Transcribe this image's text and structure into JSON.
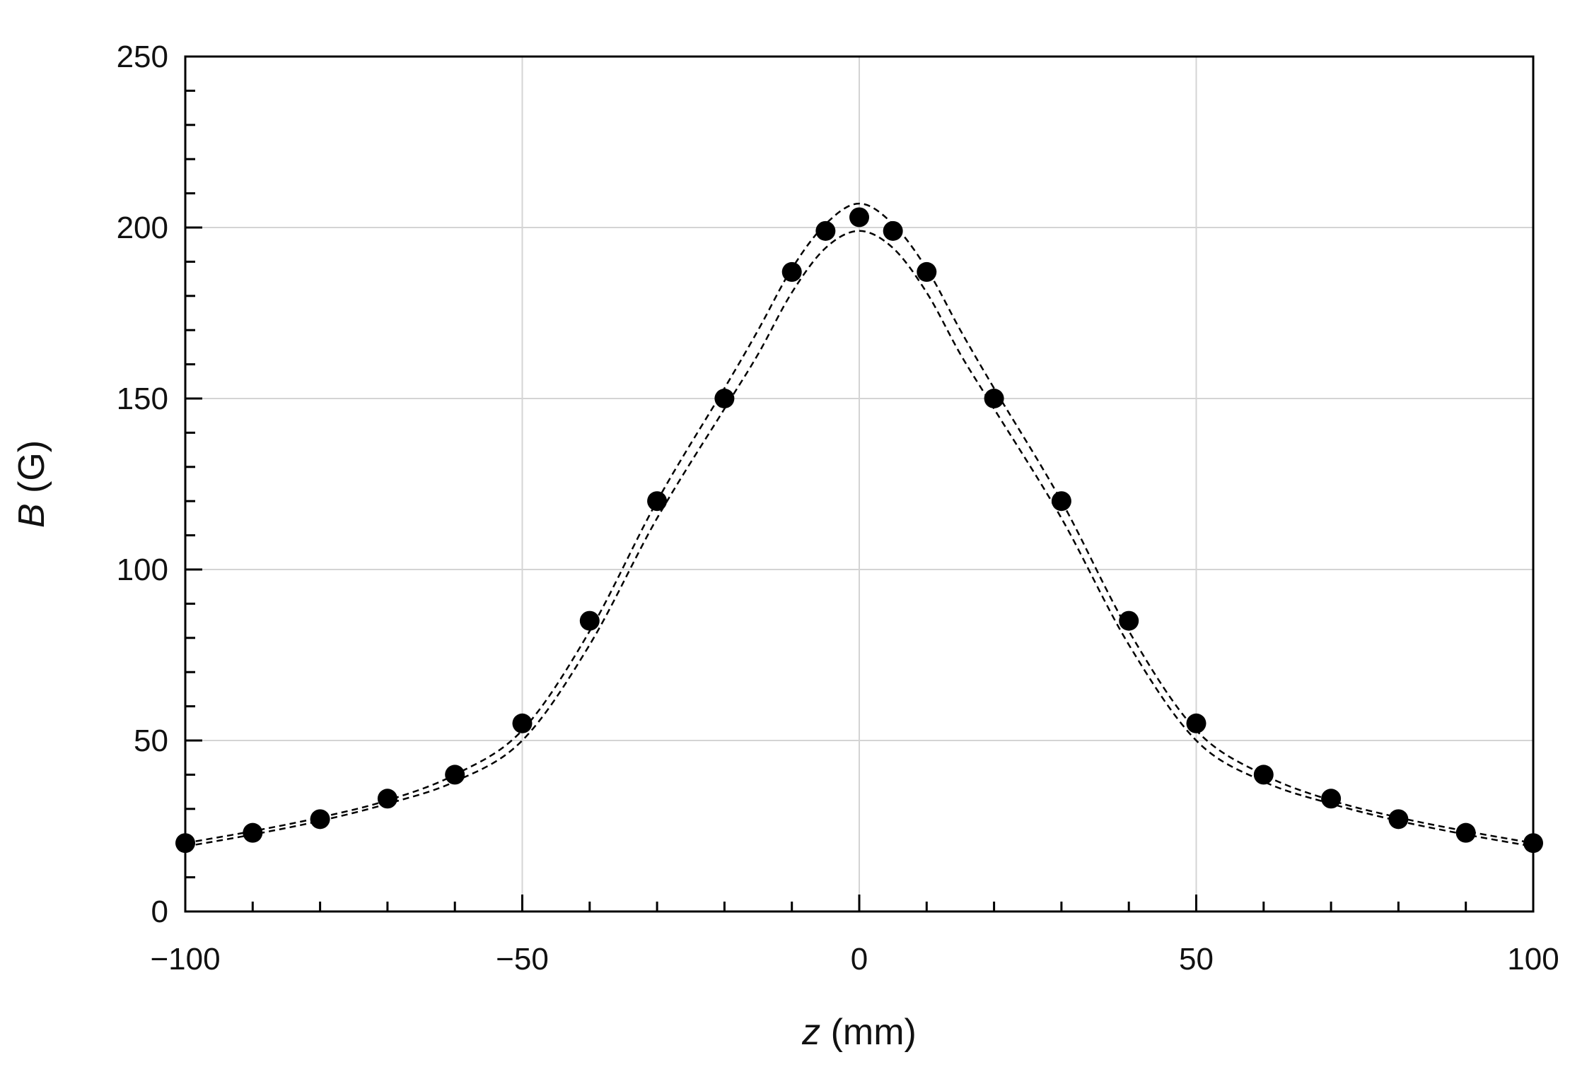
{
  "chart_data": {
    "type": "scatter",
    "title": "",
    "xlabel": {
      "var": "z",
      "unit": " (mm)"
    },
    "ylabel": {
      "var": "B",
      "unit": " (G)"
    },
    "xlim": [
      -100,
      100
    ],
    "ylim": [
      0,
      250
    ],
    "xticks": [
      -100,
      -50,
      0,
      50,
      100
    ],
    "xtick_labels": [
      "−100",
      "−50",
      "0",
      "50",
      "100"
    ],
    "yticks": [
      0,
      50,
      100,
      150,
      200,
      250
    ],
    "ytick_labels": [
      "0",
      "50",
      "100",
      "150",
      "200",
      "250"
    ],
    "x_minor_step": 10,
    "y_minor_step": 10,
    "grid": true,
    "legend": "none",
    "colors": {
      "marker": "#000000",
      "curve": "#000000",
      "grid": "#d4d4d4",
      "frame": "#000000"
    },
    "series": [
      {
        "kind": "markers",
        "x": [
          -100,
          -90,
          -80,
          -70,
          -60,
          -50,
          -40,
          -30,
          -20,
          -10,
          -5,
          0,
          5,
          10,
          20,
          30,
          40,
          50,
          60,
          70,
          80,
          90,
          100
        ],
        "y": [
          20,
          23,
          27,
          33,
          40,
          55,
          85,
          120,
          150,
          187,
          199,
          203,
          199,
          187,
          150,
          120,
          85,
          55,
          40,
          33,
          27,
          23,
          20
        ]
      },
      {
        "kind": "dashed-curve",
        "x": [
          -100,
          -90,
          -80,
          -70,
          -60,
          -50,
          -40,
          -30,
          -20,
          -15,
          -10,
          -5,
          0,
          5,
          10,
          15,
          20,
          30,
          40,
          50,
          60,
          70,
          80,
          90,
          100
        ],
        "y": [
          20,
          23.5,
          27.5,
          32.5,
          40,
          53,
          82,
          120,
          153,
          170,
          188,
          201,
          207,
          201,
          188,
          170,
          153,
          120,
          82,
          53,
          40,
          32.5,
          27.5,
          23.5,
          20
        ]
      },
      {
        "kind": "dashed-curve",
        "x": [
          -100,
          -90,
          -80,
          -70,
          -60,
          -50,
          -40,
          -30,
          -20,
          -15,
          -10,
          -5,
          0,
          5,
          10,
          15,
          20,
          30,
          40,
          50,
          60,
          70,
          80,
          90,
          100
        ],
        "y": [
          19,
          22.5,
          26.5,
          31.5,
          38,
          50,
          78,
          115,
          147,
          163,
          181,
          194,
          199,
          194,
          181,
          163,
          147,
          115,
          78,
          50,
          38,
          31.5,
          26.5,
          22.5,
          19
        ]
      }
    ]
  }
}
